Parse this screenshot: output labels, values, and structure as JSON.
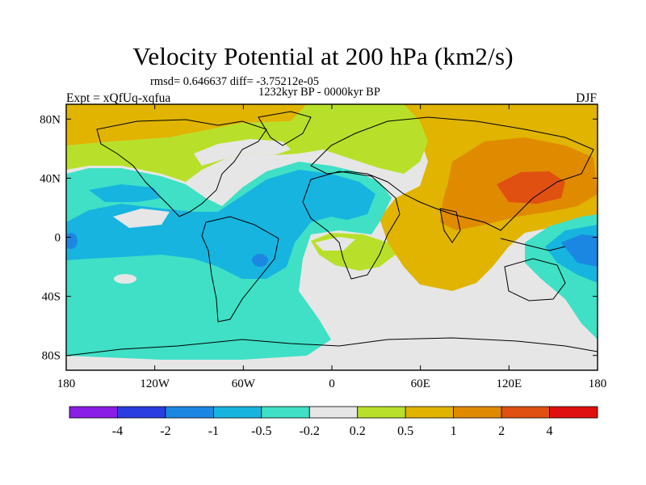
{
  "title": "Velocity Potential at 200 hPa (km2/s)",
  "stats_line": "rmsd= 0.646637 diff= -3.75212e-05",
  "period": "1232kyr BP - 0000kyr BP",
  "experiment": "Expt = xQfUq-xqfua",
  "season": "DJF",
  "map": {
    "lon_range": [
      -180,
      180
    ],
    "lat_range": [
      -90,
      90
    ],
    "x_ticks": [
      {
        "value": -180,
        "label": "180"
      },
      {
        "value": -120,
        "label": "120W"
      },
      {
        "value": -60,
        "label": "60W"
      },
      {
        "value": 0,
        "label": "0"
      },
      {
        "value": 60,
        "label": "60E"
      },
      {
        "value": 120,
        "label": "120E"
      },
      {
        "value": 180,
        "label": "180"
      }
    ],
    "y_ticks": [
      {
        "value": 80,
        "label": "80N"
      },
      {
        "value": 40,
        "label": "40N"
      },
      {
        "value": 0,
        "label": "0"
      },
      {
        "value": -40,
        "label": "40S"
      },
      {
        "value": -80,
        "label": "80S"
      }
    ]
  },
  "colorbar": {
    "colors": [
      "#8a1ee6",
      "#2a3de0",
      "#1b87e3",
      "#17b4e0",
      "#3fe0c6",
      "#e6e6e6",
      "#b8e02a",
      "#e0b400",
      "#e08a00",
      "#e05010",
      "#e01010"
    ],
    "labels": [
      "-4",
      "-2",
      "-1",
      "-0.5",
      "-0.2",
      "0.2",
      "0.5",
      "1",
      "2",
      "4"
    ]
  }
}
